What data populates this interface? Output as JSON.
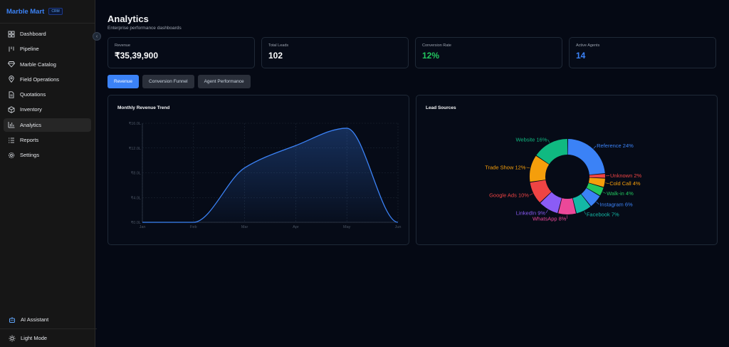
{
  "brand": {
    "name": "Marble Mart",
    "badge": "CRM"
  },
  "sidebar": {
    "items": [
      {
        "label": "Dashboard",
        "icon": "dashboard-icon",
        "active": false
      },
      {
        "label": "Pipeline",
        "icon": "pipeline-icon",
        "active": false
      },
      {
        "label": "Marble Catalog",
        "icon": "gem-icon",
        "active": false
      },
      {
        "label": "Field Operations",
        "icon": "map-pin-icon",
        "active": false
      },
      {
        "label": "Quotations",
        "icon": "document-icon",
        "active": false
      },
      {
        "label": "Inventory",
        "icon": "box-icon",
        "active": false
      },
      {
        "label": "Analytics",
        "icon": "bar-chart-icon",
        "active": true
      },
      {
        "label": "Reports",
        "icon": "list-icon",
        "active": false
      },
      {
        "label": "Settings",
        "icon": "gear-icon",
        "active": false
      }
    ],
    "ai_assistant": "AI Assistant",
    "theme_toggle": "Light Mode"
  },
  "header": {
    "title": "Analytics",
    "subtitle": "Enterprise performance dashboards"
  },
  "stats": [
    {
      "label": "Revenue",
      "value": "₹35,39,900",
      "color": "#f9fafb"
    },
    {
      "label": "Total Leads",
      "value": "102",
      "color": "#f9fafb"
    },
    {
      "label": "Conversion Rate",
      "value": "12%",
      "color": "#22c55e"
    },
    {
      "label": "Active Agents",
      "value": "14",
      "color": "#3b82f6"
    }
  ],
  "tabs": [
    {
      "label": "Revenue",
      "active": true
    },
    {
      "label": "Conversion Funnel",
      "active": false
    },
    {
      "label": "Agent Performance",
      "active": false
    }
  ],
  "revenue_panel": {
    "title": "Monthly Revenue Trend"
  },
  "sources_panel": {
    "title": "Lead Sources"
  },
  "chart_data": [
    {
      "type": "area",
      "title": "Monthly Revenue Trend",
      "x": [
        "Jan",
        "Feb",
        "Mar",
        "Apr",
        "May",
        "Jun"
      ],
      "y": [
        0,
        0,
        8.8,
        12.4,
        15.2,
        0
      ],
      "y_unit": "L",
      "y_ticks": [
        "₹0.0L",
        "₹4.0L",
        "₹8.0L",
        "₹12.0L",
        "₹16.0L"
      ],
      "ylim": [
        0,
        16
      ],
      "grid": true,
      "color": "#3b82f6"
    },
    {
      "type": "pie",
      "title": "Lead Sources",
      "donut": true,
      "slices": [
        {
          "label": "Reference",
          "value": 24,
          "text": "Reference 24%",
          "color": "#3b82f6"
        },
        {
          "label": "Unknown",
          "value": 2,
          "text": "Unknown 2%",
          "color": "#ef4444"
        },
        {
          "label": "Cold Call",
          "value": 4,
          "text": "Cold Call 4%",
          "color": "#f59e0b"
        },
        {
          "label": "Walk-in",
          "value": 4,
          "text": "Walk-in 4%",
          "color": "#22c55e"
        },
        {
          "label": "Instagram",
          "value": 6,
          "text": "Instagram 6%",
          "color": "#3b82f6"
        },
        {
          "label": "Facebook",
          "value": 7,
          "text": "Facebook 7%",
          "color": "#14b8a6"
        },
        {
          "label": "WhatsApp",
          "value": 8,
          "text": "WhatsApp 8%",
          "color": "#ec4899"
        },
        {
          "label": "LinkedIn",
          "value": 9,
          "text": "LinkedIn 9%",
          "color": "#8b5cf6"
        },
        {
          "label": "Google Ads",
          "value": 10,
          "text": "Google Ads 10%",
          "color": "#ef4444"
        },
        {
          "label": "Trade Show",
          "value": 12,
          "text": "Trade Show 12%",
          "color": "#f59e0b"
        },
        {
          "label": "Website",
          "value": 16,
          "text": "Website 16%",
          "color": "#10b981"
        }
      ]
    }
  ]
}
